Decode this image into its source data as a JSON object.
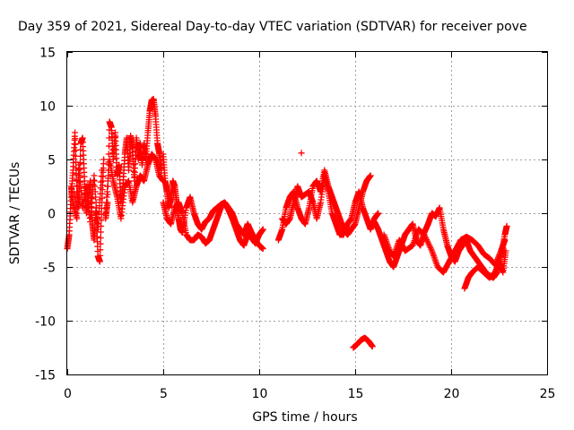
{
  "chart_data": {
    "type": "scatter",
    "title": "Day 359 of 2021, Sidereal Day-to-day VTEC variation (SDTVAR) for receiver pove",
    "xlabel": "GPS time / hours",
    "ylabel": "SDTVAR / TECUs",
    "xlim": [
      0,
      25
    ],
    "ylim": [
      -15,
      15
    ],
    "xticks": [
      0,
      5,
      10,
      15,
      20,
      25
    ],
    "yticks": [
      -15,
      -10,
      -5,
      0,
      5,
      10,
      15
    ],
    "xtick_labels": [
      "0",
      "5",
      "10",
      "15",
      "20",
      "25"
    ],
    "ytick_labels": [
      "-15",
      "-10",
      "-5",
      "0",
      "5",
      "10",
      "15"
    ],
    "grid": true,
    "marker": "+",
    "color": "#ff0000",
    "series": [
      {
        "name": "SDTVAR",
        "segments": [
          [
            [
              0.0,
              -3.3
            ],
            [
              0.1,
              -2.0
            ],
            [
              0.2,
              1.5
            ],
            [
              0.3,
              4.0
            ],
            [
              0.4,
              7.5
            ],
            [
              0.5,
              2.0
            ],
            [
              0.6,
              0.5
            ],
            [
              0.7,
              6.5
            ],
            [
              0.8,
              7.0
            ],
            [
              0.9,
              3.0
            ],
            [
              1.0,
              0.0
            ],
            [
              1.1,
              1.5
            ],
            [
              1.2,
              3.0
            ],
            [
              1.3,
              -1.0
            ],
            [
              1.4,
              -2.5
            ],
            [
              1.5,
              0.5
            ],
            [
              1.6,
              -4.0
            ],
            [
              1.7,
              -4.5
            ],
            [
              1.8,
              1.0
            ],
            [
              1.9,
              5.0
            ]
          ],
          [
            [
              0.2,
              2.5
            ],
            [
              0.3,
              1.0
            ],
            [
              0.5,
              -0.5
            ],
            [
              0.6,
              4.5
            ],
            [
              0.8,
              0.5
            ],
            [
              1.0,
              2.5
            ],
            [
              1.2,
              -0.8
            ],
            [
              1.4,
              3.5
            ],
            [
              1.6,
              -1.5
            ],
            [
              1.8,
              4.0
            ]
          ],
          [
            [
              2.0,
              -0.5
            ],
            [
              2.1,
              1.0
            ],
            [
              2.2,
              8.5
            ],
            [
              2.3,
              8.0
            ],
            [
              2.4,
              5.0
            ],
            [
              2.5,
              7.5
            ],
            [
              2.6,
              3.5
            ],
            [
              2.7,
              4.5
            ],
            [
              2.8,
              1.0
            ],
            [
              2.9,
              2.5
            ],
            [
              3.0,
              5.5
            ],
            [
              3.1,
              7.0
            ],
            [
              3.2,
              4.0
            ],
            [
              3.3,
              7.2
            ],
            [
              3.4,
              6.0
            ],
            [
              3.5,
              3.0
            ],
            [
              3.6,
              7.0
            ],
            [
              3.7,
              5.0
            ],
            [
              3.8,
              6.5
            ],
            [
              3.9,
              4.5
            ],
            [
              4.0,
              6.5
            ],
            [
              4.1,
              5.0
            ],
            [
              4.2,
              7.5
            ],
            [
              4.3,
              9.5
            ],
            [
              4.4,
              10.5
            ],
            [
              4.5,
              10.6
            ],
            [
              4.6,
              9.0
            ],
            [
              4.7,
              6.5
            ],
            [
              4.8,
              5.5
            ],
            [
              4.9,
              4.0
            ]
          ],
          [
            [
              2.0,
              0.0
            ],
            [
              2.2,
              5.0
            ],
            [
              2.4,
              3.0
            ],
            [
              2.6,
              1.5
            ],
            [
              2.8,
              -0.5
            ],
            [
              3.0,
              2.5
            ],
            [
              3.2,
              3.0
            ],
            [
              3.4,
              1.0
            ],
            [
              3.6,
              2.5
            ],
            [
              3.8,
              3.5
            ],
            [
              4.0,
              3.0
            ],
            [
              4.2,
              4.5
            ],
            [
              4.4,
              5.5
            ],
            [
              4.6,
              5.0
            ],
            [
              4.8,
              3.5
            ],
            [
              5.0,
              3.0
            ]
          ],
          [
            [
              5.0,
              5.5
            ],
            [
              5.1,
              3.0
            ],
            [
              5.2,
              2.0
            ],
            [
              5.3,
              0.5
            ],
            [
              5.4,
              1.5
            ],
            [
              5.5,
              3.0
            ],
            [
              5.6,
              2.5
            ],
            [
              5.7,
              1.0
            ],
            [
              5.8,
              -0.5
            ],
            [
              5.9,
              -1.5
            ],
            [
              6.0,
              -1.8
            ],
            [
              6.2,
              0.5
            ],
            [
              6.4,
              1.5
            ],
            [
              6.6,
              0.0
            ],
            [
              6.8,
              -1.0
            ],
            [
              7.0,
              -1.5
            ],
            [
              7.2,
              -0.8
            ],
            [
              7.4,
              -0.5
            ],
            [
              7.6,
              0.2
            ],
            [
              7.8,
              0.5
            ],
            [
              8.0,
              0.8
            ],
            [
              8.2,
              1.0
            ],
            [
              8.4,
              0.5
            ],
            [
              8.6,
              0.0
            ],
            [
              8.8,
              -1.0
            ],
            [
              9.0,
              -1.5
            ],
            [
              9.2,
              -2.0
            ],
            [
              9.4,
              -1.0
            ],
            [
              9.6,
              -1.8
            ],
            [
              9.8,
              -2.5
            ],
            [
              10.0,
              -3.0
            ],
            [
              10.2,
              -3.3
            ]
          ],
          [
            [
              5.0,
              1.0
            ],
            [
              5.2,
              -0.5
            ],
            [
              5.4,
              -1.0
            ],
            [
              5.6,
              0.5
            ],
            [
              5.8,
              1.0
            ],
            [
              6.0,
              0.0
            ],
            [
              6.2,
              -2.0
            ],
            [
              6.4,
              -2.5
            ],
            [
              6.6,
              -2.5
            ],
            [
              6.8,
              -2.0
            ],
            [
              7.0,
              -2.2
            ],
            [
              7.2,
              -2.8
            ],
            [
              7.4,
              -2.5
            ],
            [
              7.6,
              -1.5
            ],
            [
              7.8,
              -0.5
            ],
            [
              8.0,
              0.5
            ],
            [
              8.2,
              1.0
            ],
            [
              8.4,
              0.3
            ],
            [
              8.6,
              -0.5
            ],
            [
              8.8,
              -1.5
            ],
            [
              9.0,
              -2.5
            ],
            [
              9.2,
              -3.0
            ],
            [
              9.4,
              -2.0
            ],
            [
              9.6,
              -2.3
            ],
            [
              9.8,
              -2.8
            ],
            [
              10.0,
              -2.0
            ],
            [
              10.2,
              -1.5
            ]
          ],
          [
            [
              11.0,
              -2.5
            ],
            [
              11.2,
              -1.5
            ],
            [
              11.4,
              0.5
            ],
            [
              11.6,
              1.5
            ],
            [
              11.8,
              2.0
            ],
            [
              12.0,
              0.5
            ],
            [
              12.2,
              -0.5
            ],
            [
              12.4,
              -1.0
            ],
            [
              12.6,
              0.5
            ],
            [
              12.8,
              2.5
            ],
            [
              13.0,
              3.0
            ],
            [
              13.2,
              2.0
            ],
            [
              13.4,
              4.0
            ],
            [
              13.6,
              2.5
            ],
            [
              13.8,
              1.5
            ],
            [
              14.0,
              0.5
            ],
            [
              14.2,
              -0.5
            ],
            [
              14.4,
              -1.5
            ],
            [
              14.6,
              -2.0
            ],
            [
              14.8,
              -1.5
            ],
            [
              15.0,
              -1.0
            ],
            [
              15.2,
              0.5
            ],
            [
              15.4,
              2.0
            ],
            [
              15.6,
              3.0
            ],
            [
              15.8,
              3.5
            ]
          ],
          [
            [
              11.2,
              -0.5
            ],
            [
              11.4,
              -1.0
            ],
            [
              11.6,
              -0.5
            ],
            [
              11.8,
              1.0
            ],
            [
              12.0,
              2.5
            ],
            [
              12.2,
              1.5
            ],
            [
              12.6,
              2.0
            ],
            [
              12.8,
              1.0
            ],
            [
              13.0,
              -0.5
            ],
            [
              13.2,
              1.0
            ],
            [
              13.4,
              3.5
            ],
            [
              13.6,
              2.0
            ],
            [
              13.8,
              0.0
            ],
            [
              14.0,
              -1.0
            ],
            [
              14.2,
              -2.0
            ],
            [
              14.4,
              -2.0
            ],
            [
              14.6,
              -1.0
            ],
            [
              14.8,
              -0.5
            ],
            [
              15.0,
              1.0
            ],
            [
              15.2,
              2.0
            ],
            [
              15.4,
              0.5
            ],
            [
              15.6,
              -0.5
            ],
            [
              15.8,
              -1.5
            ],
            [
              16.0,
              -0.5
            ],
            [
              16.2,
              0.0
            ]
          ],
          [
            [
              12.2,
              5.6
            ]
          ],
          [
            [
              14.9,
              -12.5
            ],
            [
              15.1,
              -12.2
            ],
            [
              15.3,
              -11.8
            ],
            [
              15.5,
              -11.6
            ],
            [
              15.7,
              -11.9
            ],
            [
              15.9,
              -12.4
            ]
          ],
          [
            [
              16.0,
              -0.8
            ],
            [
              16.2,
              -1.5
            ],
            [
              16.4,
              -2.5
            ],
            [
              16.6,
              -3.5
            ],
            [
              16.8,
              -4.5
            ],
            [
              17.0,
              -5.0
            ],
            [
              17.2,
              -4.0
            ],
            [
              17.4,
              -3.0
            ],
            [
              17.6,
              -2.0
            ],
            [
              17.8,
              -1.5
            ],
            [
              18.0,
              -1.0
            ],
            [
              18.2,
              -2.5
            ],
            [
              18.4,
              -3.0
            ],
            [
              18.6,
              -1.8
            ],
            [
              18.8,
              -1.0
            ],
            [
              19.0,
              0.0
            ],
            [
              19.2,
              -0.3
            ],
            [
              19.4,
              0.5
            ],
            [
              19.6,
              -1.5
            ],
            [
              19.8,
              -3.0
            ],
            [
              20.0,
              -4.0
            ],
            [
              20.2,
              -4.5
            ],
            [
              20.4,
              -3.5
            ],
            [
              20.6,
              -3.0
            ],
            [
              20.8,
              -2.5
            ],
            [
              21.0,
              -3.5
            ],
            [
              21.2,
              -4.0
            ],
            [
              21.4,
              -4.5
            ],
            [
              21.6,
              -5.0
            ],
            [
              21.8,
              -5.5
            ],
            [
              22.0,
              -5.8
            ],
            [
              22.2,
              -6.0
            ],
            [
              22.4,
              -5.5
            ],
            [
              22.6,
              -4.0
            ],
            [
              22.8,
              -2.0
            ],
            [
              22.9,
              -1.2
            ]
          ],
          [
            [
              16.5,
              -2.0
            ],
            [
              16.8,
              -3.5
            ],
            [
              17.0,
              -4.0
            ],
            [
              17.3,
              -2.5
            ],
            [
              17.6,
              -3.5
            ],
            [
              18.0,
              -3.0
            ],
            [
              18.3,
              -1.5
            ],
            [
              18.6,
              -2.0
            ],
            [
              19.0,
              -3.5
            ],
            [
              19.3,
              -5.0
            ],
            [
              19.6,
              -5.5
            ],
            [
              19.9,
              -4.5
            ],
            [
              20.2,
              -3.5
            ],
            [
              20.5,
              -2.5
            ],
            [
              20.8,
              -2.2
            ],
            [
              21.1,
              -2.5
            ],
            [
              21.4,
              -3.0
            ],
            [
              21.7,
              -3.8
            ],
            [
              22.0,
              -4.2
            ],
            [
              22.3,
              -4.8
            ],
            [
              22.6,
              -3.5
            ],
            [
              22.8,
              -2.5
            ]
          ],
          [
            [
              20.7,
              -7.0
            ],
            [
              20.9,
              -6.0
            ],
            [
              21.1,
              -5.5
            ],
            [
              21.4,
              -5.0
            ],
            [
              21.7,
              -5.5
            ],
            [
              22.0,
              -6.0
            ],
            [
              22.3,
              -5.5
            ],
            [
              22.5,
              -4.5
            ],
            [
              22.7,
              -5.5
            ],
            [
              22.85,
              -3.5
            ]
          ]
        ]
      }
    ]
  }
}
